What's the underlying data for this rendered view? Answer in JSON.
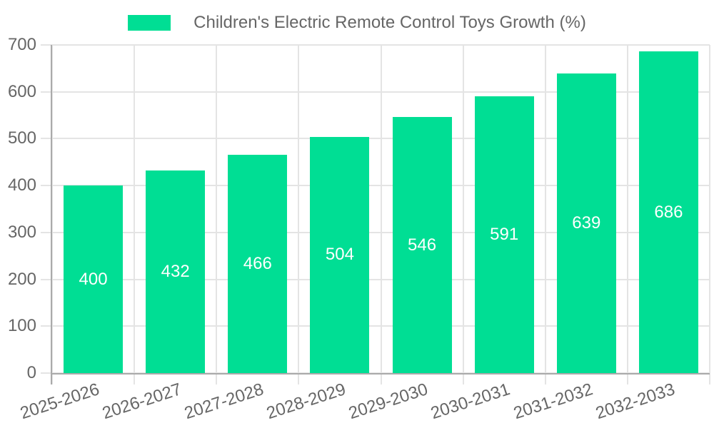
{
  "chart_data": {
    "type": "bar",
    "title": "Children's Electric Remote Control Toys Growth (%)",
    "categories": [
      "2025-2026",
      "2026-2027",
      "2027-2028",
      "2028-2029",
      "2029-2030",
      "2030-2031",
      "2031-2032",
      "2032-2033"
    ],
    "values": [
      400,
      432,
      466,
      504,
      546,
      591,
      639,
      686
    ],
    "xlabel": "",
    "ylabel": "",
    "ylim": [
      0,
      700
    ],
    "yticks": [
      0,
      100,
      200,
      300,
      400,
      500,
      600,
      700
    ],
    "grid": "on",
    "legend_position": "top-center",
    "colors": {
      "bar": "#00DE94",
      "grid": "#E4E4E4",
      "axis": "#AAAAAA",
      "tick_label": "#666666",
      "legend_label": "#666666",
      "bar_label": "#FFFFFF"
    }
  }
}
